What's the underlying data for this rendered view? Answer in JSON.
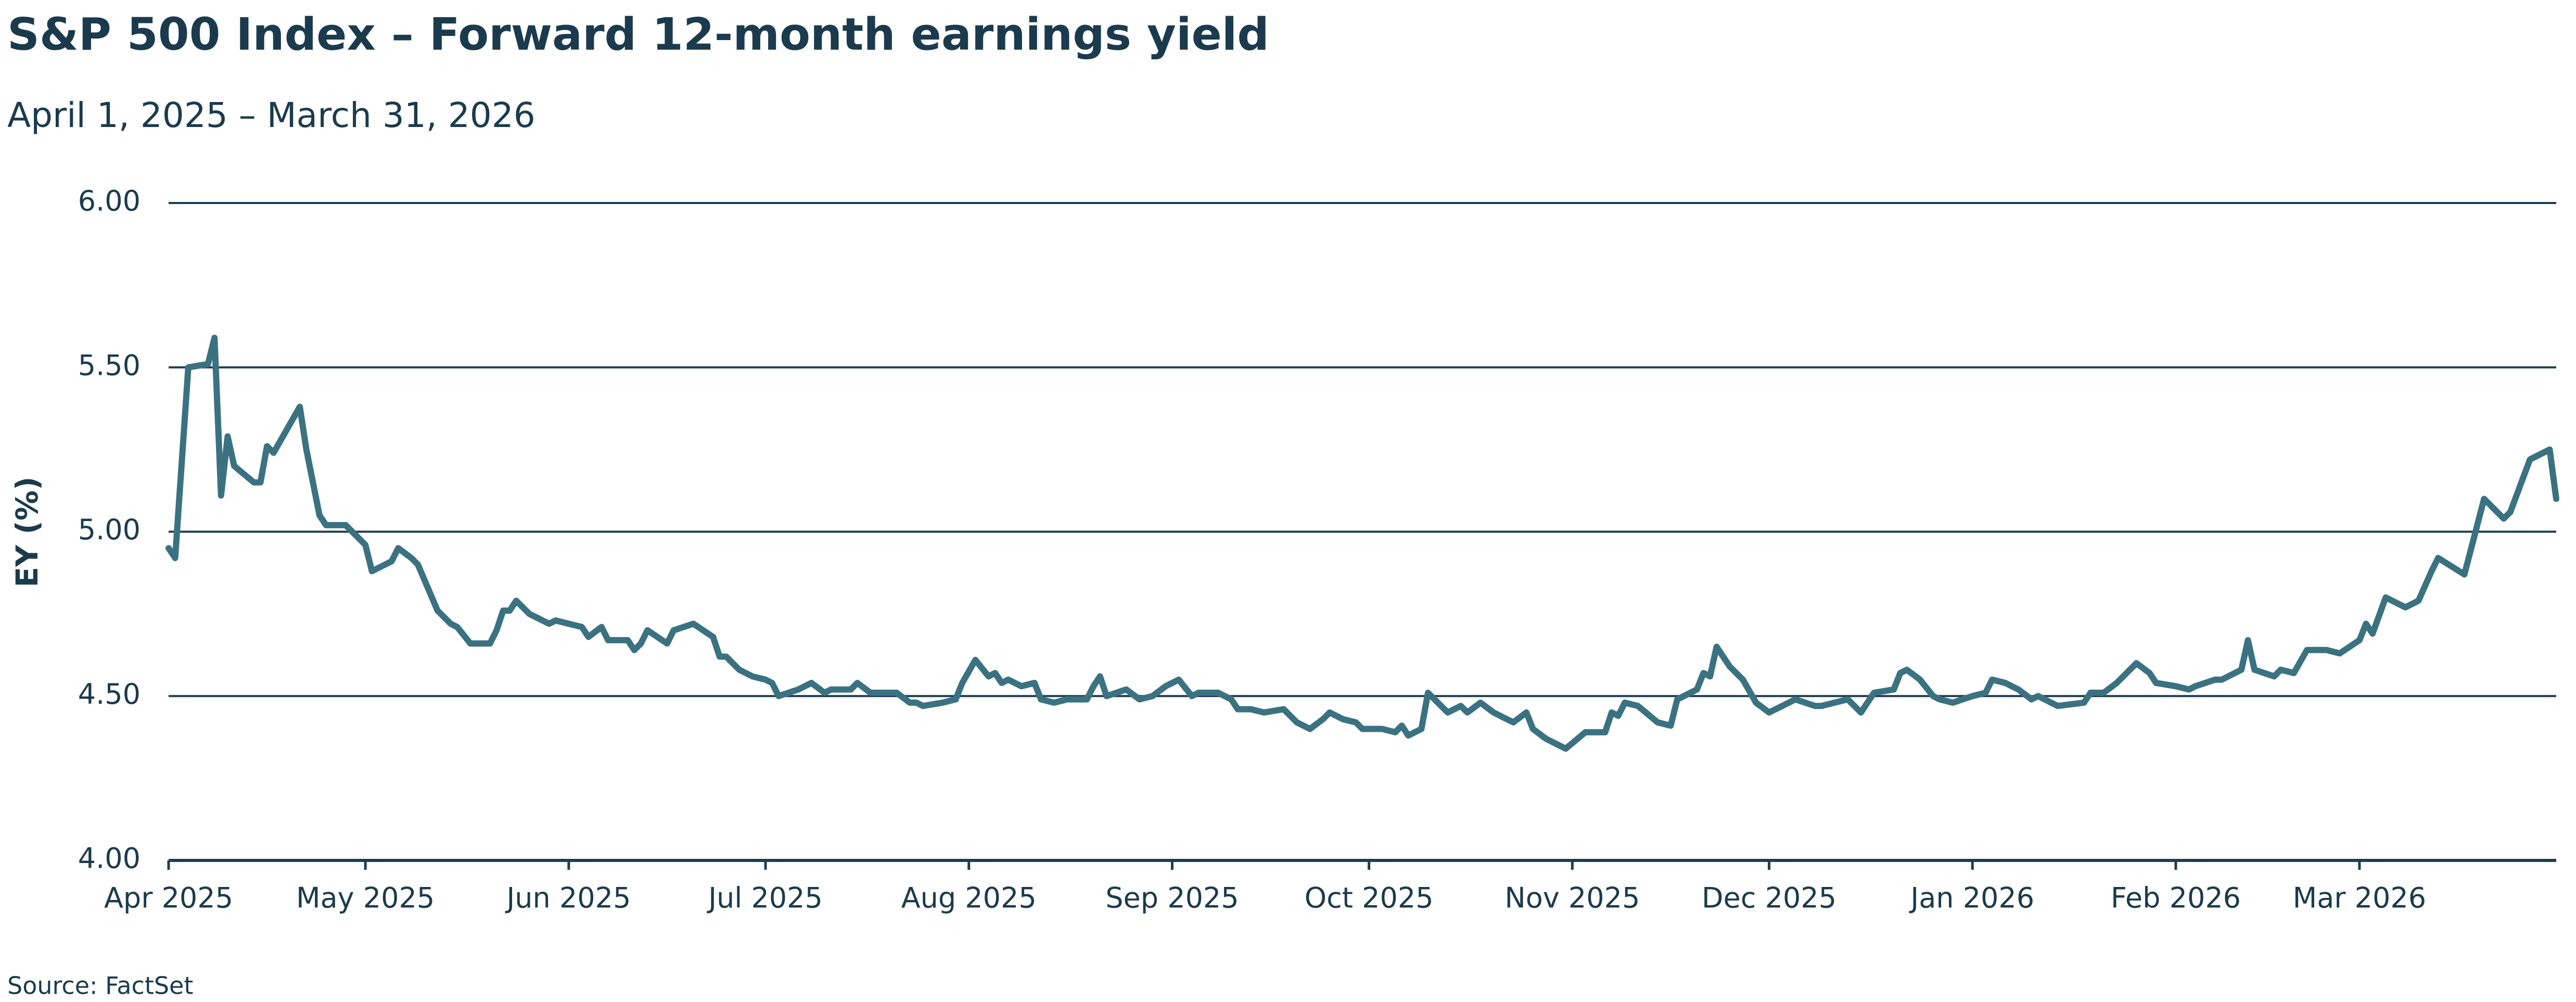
{
  "chart_data": {
    "type": "line",
    "title": "S&P 500 Index – Forward 12-month earnings yield",
    "subtitle": "April 1, 2025 – March 31, 2026",
    "y_label": "EY (%)",
    "source": "Source: FactSet",
    "color": "#3b7282",
    "grid": true,
    "xlim": [
      0,
      364
    ],
    "xticks": [
      {
        "value": 0,
        "label": "Apr 2025"
      },
      {
        "value": 30,
        "label": "May 2025"
      },
      {
        "value": 61,
        "label": "Jun 2025"
      },
      {
        "value": 91,
        "label": "Jul 2025"
      },
      {
        "value": 122,
        "label": "Aug 2025"
      },
      {
        "value": 153,
        "label": "Sep 2025"
      },
      {
        "value": 183,
        "label": "Oct 2025"
      },
      {
        "value": 214,
        "label": "Nov 2025"
      },
      {
        "value": 244,
        "label": "Dec 2025"
      },
      {
        "value": 275,
        "label": "Jan 2026"
      },
      {
        "value": 306,
        "label": "Feb 2026"
      },
      {
        "value": 334,
        "label": "Mar 2026"
      }
    ],
    "ylim": [
      4,
      6
    ],
    "yticks": [
      {
        "value": 4,
        "label": "4.00"
      },
      {
        "value": 4.5,
        "label": "4.50"
      },
      {
        "value": 5,
        "label": "5.00"
      },
      {
        "value": 5.5,
        "label": "5.50"
      },
      {
        "value": 6,
        "label": "6.00"
      }
    ],
    "x": [
      0,
      1,
      3,
      6,
      7,
      8,
      9,
      10,
      13,
      14,
      15,
      16,
      20,
      21,
      23,
      24,
      27,
      29,
      30,
      31,
      34,
      35,
      37,
      38,
      41,
      43,
      44,
      46,
      49,
      50,
      51,
      52,
      53,
      55,
      58,
      59,
      61,
      63,
      64,
      66,
      67,
      70,
      71,
      72,
      73,
      76,
      77,
      80,
      83,
      84,
      85,
      87,
      89,
      91,
      92,
      93,
      96,
      98,
      100,
      101,
      104,
      105,
      107,
      111,
      113,
      114,
      115,
      118,
      120,
      121,
      123,
      125,
      126,
      127,
      128,
      130,
      132,
      133,
      135,
      137,
      140,
      141,
      142,
      143,
      146,
      148,
      150,
      152,
      154,
      156,
      157,
      160,
      162,
      163,
      165,
      167,
      170,
      171,
      172,
      174,
      176,
      177,
      179,
      181,
      182,
      185,
      187,
      188,
      189,
      191,
      192,
      193,
      195,
      197,
      198,
      200,
      202,
      204,
      205,
      207,
      208,
      210,
      212,
      213,
      216,
      218,
      219,
      220,
      221,
      222,
      224,
      227,
      229,
      230,
      233,
      234,
      235,
      236,
      238,
      240,
      242,
      244,
      246,
      248,
      251,
      252,
      256,
      258,
      259,
      260,
      263,
      264,
      265,
      267,
      269,
      270,
      272,
      275,
      277,
      278,
      280,
      282,
      284,
      285,
      288,
      292,
      293,
      295,
      297,
      300,
      302,
      303,
      306,
      308,
      309,
      312,
      313,
      316,
      317,
      318,
      321,
      322,
      324,
      326,
      329,
      331,
      334,
      335,
      336,
      338,
      341,
      343,
      345,
      346,
      350,
      353,
      355,
      356,
      357,
      360,
      363,
      364
    ],
    "values": [
      4.95,
      4.92,
      5.5,
      5.51,
      5.59,
      5.11,
      5.29,
      5.2,
      5.15,
      5.15,
      5.26,
      5.24,
      5.38,
      5.25,
      5.05,
      5.02,
      5.02,
      4.98,
      4.96,
      4.88,
      4.91,
      4.95,
      4.92,
      4.9,
      4.76,
      4.72,
      4.71,
      4.66,
      4.66,
      4.7,
      4.76,
      4.76,
      4.79,
      4.75,
      4.72,
      4.73,
      4.72,
      4.71,
      4.68,
      4.71,
      4.67,
      4.67,
      4.64,
      4.66,
      4.7,
      4.66,
      4.7,
      4.72,
      4.68,
      4.62,
      4.62,
      4.58,
      4.56,
      4.55,
      4.54,
      4.5,
      4.52,
      4.54,
      4.51,
      4.52,
      4.52,
      4.54,
      4.51,
      4.51,
      4.48,
      4.48,
      4.47,
      4.48,
      4.49,
      4.54,
      4.61,
      4.56,
      4.57,
      4.54,
      4.55,
      4.53,
      4.54,
      4.49,
      4.48,
      4.49,
      4.49,
      4.53,
      4.56,
      4.5,
      4.52,
      4.49,
      4.5,
      4.53,
      4.55,
      4.5,
      4.51,
      4.51,
      4.49,
      4.46,
      4.46,
      4.45,
      4.46,
      4.44,
      4.42,
      4.4,
      4.43,
      4.45,
      4.43,
      4.42,
      4.4,
      4.4,
      4.39,
      4.41,
      4.38,
      4.4,
      4.51,
      4.49,
      4.45,
      4.47,
      4.45,
      4.48,
      4.45,
      4.43,
      4.42,
      4.45,
      4.4,
      4.37,
      4.35,
      4.34,
      4.39,
      4.39,
      4.39,
      4.45,
      4.44,
      4.48,
      4.47,
      4.42,
      4.41,
      4.49,
      4.52,
      4.57,
      4.56,
      4.65,
      4.59,
      4.55,
      4.48,
      4.45,
      4.47,
      4.49,
      4.47,
      4.47,
      4.49,
      4.45,
      4.48,
      4.51,
      4.52,
      4.57,
      4.58,
      4.55,
      4.5,
      4.49,
      4.48,
      4.5,
      4.51,
      4.55,
      4.54,
      4.52,
      4.49,
      4.5,
      4.47,
      4.48,
      4.51,
      4.51,
      4.54,
      4.6,
      4.57,
      4.54,
      4.53,
      4.52,
      4.53,
      4.55,
      4.55,
      4.58,
      4.67,
      4.58,
      4.56,
      4.58,
      4.57,
      4.64,
      4.64,
      4.63,
      4.67,
      4.72,
      4.69,
      4.8,
      4.77,
      4.79,
      4.88,
      4.92,
      4.87,
      5.1,
      5.06,
      5.04,
      5.06,
      5.22,
      5.25,
      5.1
    ]
  }
}
